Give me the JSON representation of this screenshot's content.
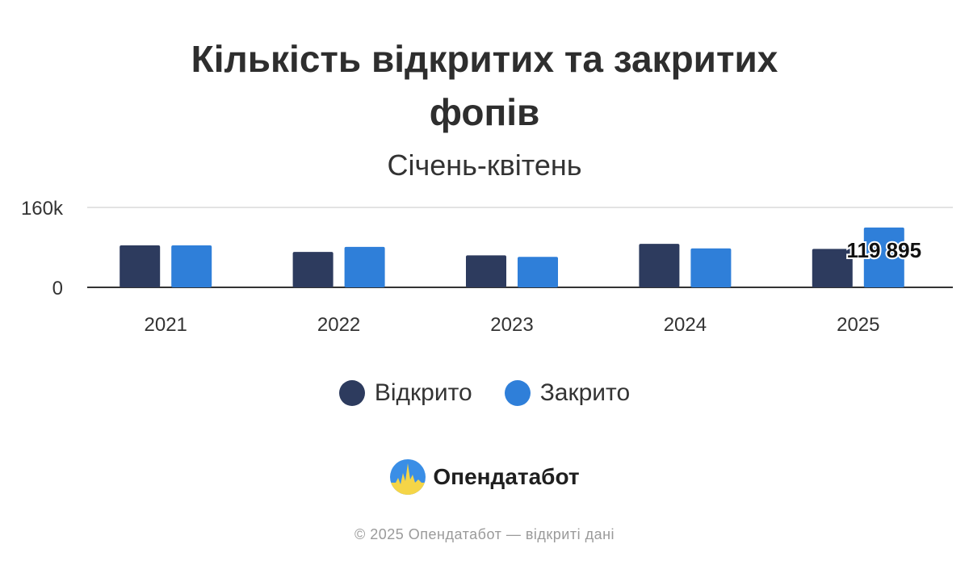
{
  "chart_data": {
    "type": "bar",
    "title": "Кількість відкритих та закритих фопів",
    "subtitle": "Січень-квітень",
    "categories": [
      "2021",
      "2022",
      "2023",
      "2024",
      "2025"
    ],
    "series": [
      {
        "name": "Відкрито",
        "color": "#2d3b5e",
        "values": [
          84000,
          71000,
          64000,
          87000,
          77000
        ]
      },
      {
        "name": "Закрито",
        "color": "#2f7fd9",
        "values": [
          84000,
          81000,
          61000,
          78000,
          119895
        ]
      }
    ],
    "ylim": [
      0,
      160000
    ],
    "yticks": [
      "0",
      "160k"
    ],
    "grid": true,
    "legend": "bottom",
    "data_labels": [
      {
        "series": 1,
        "index": 4,
        "text": "119 895"
      }
    ]
  },
  "brand": {
    "name": "Опендатабот"
  },
  "footer": {
    "copyright": "© 2025 Опендатабот — відкриті дані"
  }
}
